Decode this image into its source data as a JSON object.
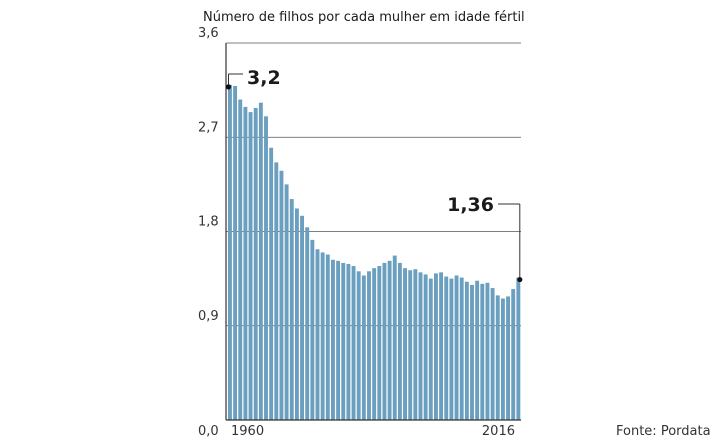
{
  "chart_data": {
    "type": "bar",
    "title": "Número de filhos por cada mulher em idade fértil",
    "source": "Fonte: Pordata",
    "ylim": [
      0,
      3.6
    ],
    "y_ticks": [
      "0,0",
      "0,9",
      "1,8",
      "2,7",
      "3,6"
    ],
    "y_tick_values": [
      0,
      0.9,
      1.8,
      2.7,
      3.6
    ],
    "x_tick_labels": [
      "1960",
      "2016"
    ],
    "grid": true,
    "bar_color": "#6a9fbf",
    "categories": [
      1960,
      1961,
      1962,
      1963,
      1964,
      1965,
      1966,
      1967,
      1968,
      1969,
      1970,
      1971,
      1972,
      1973,
      1974,
      1975,
      1976,
      1977,
      1978,
      1979,
      1980,
      1981,
      1982,
      1983,
      1984,
      1985,
      1986,
      1987,
      1988,
      1989,
      1990,
      1991,
      1992,
      1993,
      1994,
      1995,
      1996,
      1997,
      1998,
      1999,
      2000,
      2001,
      2002,
      2003,
      2004,
      2005,
      2006,
      2007,
      2008,
      2009,
      2010,
      2011,
      2012,
      2013,
      2014,
      2015,
      2016
    ],
    "values": [
      3.2,
      3.19,
      3.06,
      2.99,
      2.94,
      2.98,
      3.03,
      2.9,
      2.6,
      2.46,
      2.38,
      2.25,
      2.11,
      2.02,
      1.95,
      1.84,
      1.72,
      1.63,
      1.6,
      1.58,
      1.53,
      1.52,
      1.5,
      1.49,
      1.47,
      1.42,
      1.38,
      1.42,
      1.45,
      1.47,
      1.5,
      1.52,
      1.57,
      1.5,
      1.45,
      1.43,
      1.44,
      1.41,
      1.39,
      1.35,
      1.4,
      1.41,
      1.37,
      1.35,
      1.38,
      1.36,
      1.32,
      1.29,
      1.33,
      1.3,
      1.31,
      1.26,
      1.19,
      1.16,
      1.18,
      1.25,
      1.36
    ],
    "annotations": [
      {
        "label": "3,2",
        "year": 1960,
        "value": 3.2
      },
      {
        "label": "1,36",
        "year": 2016,
        "value": 1.36
      }
    ]
  }
}
